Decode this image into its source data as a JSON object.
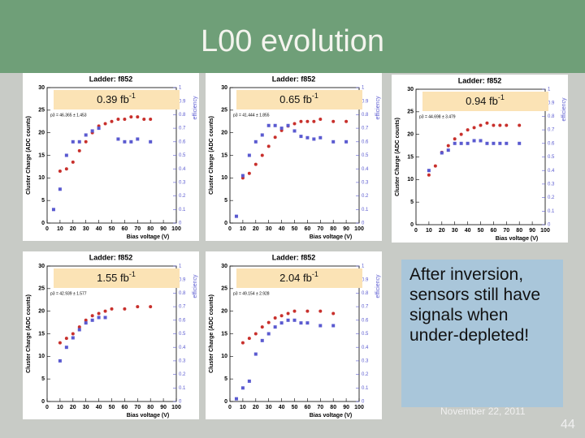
{
  "title": "L00 evolution",
  "callout": "After inversion, sensors still have signals when under-depleted!",
  "footer": {
    "date": "November 22, 2011",
    "page": 44
  },
  "chart_data": [
    {
      "type": "scatter",
      "title": "Ladder: f852",
      "x_label": "Bias voltage (V)",
      "y_label": "Cluster Charge (ADC counts)",
      "y2_label": "efficiency",
      "annotation": "0.39 fb",
      "annotation_exponent": "-1",
      "fit": "p3 = 46.365 ± 1.453",
      "xlim": [
        0,
        100
      ],
      "xticks": [
        0,
        10,
        20,
        30,
        40,
        50,
        60,
        70,
        80,
        90,
        100
      ],
      "ylim": [
        0,
        30
      ],
      "yticks": [
        0,
        5,
        10,
        15,
        20,
        25,
        30
      ],
      "y2lim": [
        0,
        1
      ],
      "y2ticks": [
        0,
        0.1,
        0.2,
        0.3,
        0.4,
        0.5,
        0.6,
        0.7,
        0.8,
        0.9,
        1
      ],
      "series": [
        {
          "color": "#c8302c",
          "x": [
            10,
            15,
            20,
            25,
            30,
            35,
            40,
            45,
            50,
            55,
            60,
            65,
            70,
            75,
            80
          ],
          "values": [
            11.5,
            12,
            13.5,
            16,
            18,
            20,
            21.5,
            22,
            22.5,
            23,
            23,
            23.5,
            23.5,
            23,
            23
          ]
        },
        {
          "color": "#5a5ad0",
          "axis": "y2",
          "x": [
            5,
            10,
            15,
            20,
            25,
            30,
            35,
            40,
            55,
            60,
            65,
            70,
            80
          ],
          "values": [
            0.1,
            0.25,
            0.5,
            0.6,
            0.6,
            0.65,
            0.68,
            0.7,
            0.62,
            0.6,
            0.6,
            0.62,
            0.6
          ]
        }
      ]
    },
    {
      "type": "scatter",
      "title": "Ladder: f852",
      "x_label": "Bias voltage (V)",
      "y_label": "Cluster Charge (ADC counts)",
      "y2_label": "efficiency",
      "annotation": "0.65 fb",
      "annotation_exponent": "-1",
      "fit": "p3 = 41.444 ± 1.855",
      "xlim": [
        0,
        100
      ],
      "xticks": [
        0,
        10,
        20,
        30,
        40,
        50,
        60,
        70,
        80,
        90,
        100
      ],
      "ylim": [
        0,
        30
      ],
      "yticks": [
        0,
        5,
        10,
        15,
        20,
        25,
        30
      ],
      "y2lim": [
        0,
        1
      ],
      "y2ticks": [
        0,
        0.1,
        0.2,
        0.3,
        0.4,
        0.5,
        0.6,
        0.7,
        0.8,
        0.9,
        1
      ],
      "series": [
        {
          "color": "#c8302c",
          "x": [
            10,
            15,
            20,
            25,
            30,
            35,
            40,
            45,
            50,
            55,
            60,
            65,
            70,
            80,
            90
          ],
          "values": [
            10,
            11,
            13,
            15,
            17,
            19,
            20.5,
            21.5,
            22,
            22.5,
            22.5,
            22.5,
            23,
            22.5,
            22.5
          ]
        },
        {
          "color": "#5a5ad0",
          "axis": "y2",
          "x": [
            5,
            10,
            15,
            20,
            25,
            30,
            35,
            40,
            45,
            50,
            55,
            60,
            65,
            70,
            80,
            90
          ],
          "values": [
            0.05,
            0.35,
            0.5,
            0.6,
            0.65,
            0.72,
            0.72,
            0.7,
            0.72,
            0.68,
            0.64,
            0.63,
            0.62,
            0.63,
            0.6,
            0.6
          ]
        }
      ]
    },
    {
      "type": "scatter",
      "title": "Ladder: f852",
      "x_label": "Bias voltage (V)",
      "y_label": "Cluster Charge (ADC counts)",
      "y2_label": "efficiency",
      "annotation": "0.94 fb",
      "annotation_exponent": "-1",
      "fit": "p3 = 44.698 ± 3.479",
      "xlim": [
        0,
        100
      ],
      "xticks": [
        0,
        10,
        20,
        30,
        40,
        50,
        60,
        70,
        80,
        90,
        100
      ],
      "ylim": [
        0,
        30
      ],
      "yticks": [
        0,
        5,
        10,
        15,
        20,
        25,
        30
      ],
      "y2lim": [
        0,
        1
      ],
      "y2ticks": [
        0,
        0.1,
        0.2,
        0.3,
        0.4,
        0.5,
        0.6,
        0.7,
        0.8,
        0.9,
        1
      ],
      "series": [
        {
          "color": "#c8302c",
          "x": [
            10,
            15,
            20,
            25,
            30,
            35,
            40,
            45,
            50,
            55,
            60,
            65,
            70,
            80
          ],
          "values": [
            11,
            13,
            16,
            17.5,
            19,
            20,
            21,
            21.5,
            22,
            22.5,
            22,
            22,
            22,
            22
          ]
        },
        {
          "color": "#5a5ad0",
          "axis": "y2",
          "x": [
            10,
            20,
            25,
            30,
            35,
            40,
            45,
            50,
            55,
            60,
            65,
            70,
            80
          ],
          "values": [
            0.4,
            0.53,
            0.55,
            0.6,
            0.6,
            0.6,
            0.62,
            0.62,
            0.6,
            0.6,
            0.6,
            0.6,
            0.6
          ]
        }
      ]
    },
    {
      "type": "scatter",
      "title": "Ladder: f852",
      "x_label": "Bias voltage (V)",
      "y_label": "Cluster Charge (ADC counts)",
      "y2_label": "efficiency",
      "annotation": "1.55 fb",
      "annotation_exponent": "-1",
      "fit": "p3 = 42.939 ± 1.577",
      "xlim": [
        0,
        100
      ],
      "xticks": [
        0,
        10,
        20,
        30,
        40,
        50,
        60,
        70,
        80,
        90,
        100
      ],
      "ylim": [
        0,
        30
      ],
      "yticks": [
        0,
        5,
        10,
        15,
        20,
        25,
        30
      ],
      "y2lim": [
        0,
        1
      ],
      "y2ticks": [
        0,
        0.1,
        0.2,
        0.3,
        0.4,
        0.5,
        0.6,
        0.7,
        0.8,
        0.9,
        1
      ],
      "series": [
        {
          "color": "#c8302c",
          "x": [
            10,
            15,
            20,
            25,
            30,
            35,
            40,
            45,
            50,
            60,
            70,
            80
          ],
          "values": [
            13,
            14,
            15,
            16.5,
            18,
            19,
            19.5,
            20,
            20.5,
            20.5,
            21,
            21
          ]
        },
        {
          "color": "#5a5ad0",
          "axis": "y2",
          "x": [
            10,
            15,
            20,
            25,
            30,
            35,
            40,
            45
          ],
          "values": [
            0.3,
            0.4,
            0.47,
            0.53,
            0.58,
            0.6,
            0.62,
            0.62
          ]
        }
      ]
    },
    {
      "type": "scatter",
      "title": "Ladder: f852",
      "x_label": "Bias voltage (V)",
      "y_label": "Cluster Charge (ADC counts)",
      "y2_label": "efficiency",
      "annotation": "2.04 fb",
      "annotation_exponent": "-1",
      "fit": "p3 = 49.154 ± 2.928",
      "xlim": [
        0,
        100
      ],
      "xticks": [
        0,
        10,
        20,
        30,
        40,
        50,
        60,
        70,
        80,
        90,
        100
      ],
      "ylim": [
        0,
        30
      ],
      "yticks": [
        0,
        5,
        10,
        15,
        20,
        25,
        30
      ],
      "y2lim": [
        0,
        1
      ],
      "y2ticks": [
        0,
        0.1,
        0.2,
        0.3,
        0.4,
        0.5,
        0.6,
        0.7,
        0.8,
        0.9,
        1
      ],
      "series": [
        {
          "color": "#c8302c",
          "x": [
            10,
            15,
            20,
            25,
            30,
            35,
            40,
            45,
            50,
            60,
            70,
            80
          ],
          "values": [
            13,
            14,
            15,
            16.5,
            17.5,
            18.5,
            19,
            19.5,
            20,
            20,
            20,
            19.5
          ]
        },
        {
          "color": "#5a5ad0",
          "axis": "y2",
          "x": [
            5,
            10,
            15,
            20,
            25,
            30,
            35,
            40,
            45,
            50,
            55,
            60,
            70,
            80
          ],
          "values": [
            0.02,
            0.1,
            0.15,
            0.35,
            0.45,
            0.5,
            0.55,
            0.58,
            0.6,
            0.6,
            0.58,
            0.58,
            0.56,
            0.56
          ]
        }
      ]
    }
  ]
}
